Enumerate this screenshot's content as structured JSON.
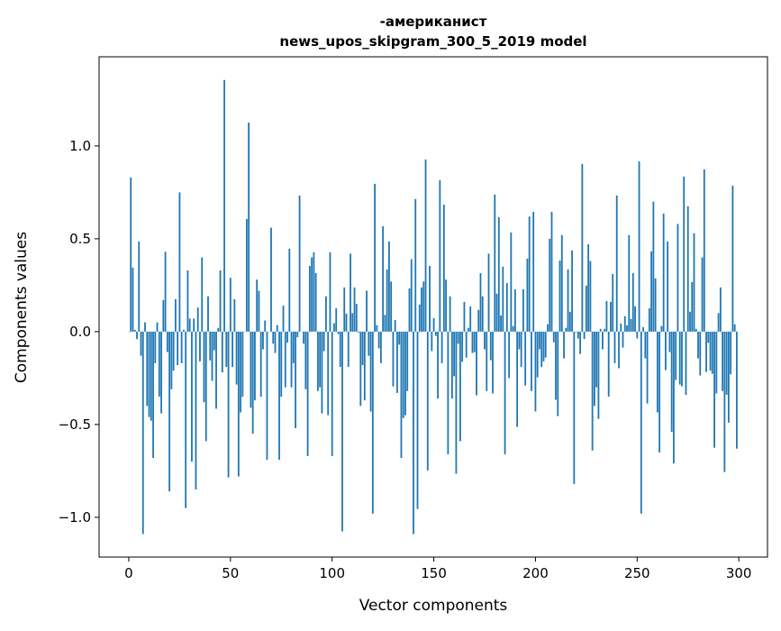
{
  "chart_data": {
    "type": "bar",
    "title": [
      "-американист",
      "news_upos_skipgram_300_5_2019 model"
    ],
    "xlabel": "Vector components",
    "ylabel": "Components values",
    "xlim": [
      -14.6,
      314.1
    ],
    "ylim": [
      -1.214,
      1.48
    ],
    "xticks": [
      0,
      50,
      100,
      150,
      200,
      250,
      300
    ],
    "xtick_labels": [
      "0",
      "50",
      "100",
      "150",
      "200",
      "250",
      "300"
    ],
    "yticks": [
      -1.0,
      -0.5,
      0.0,
      0.5,
      1.0
    ],
    "ytick_labels": [
      "−1.0",
      "−0.5",
      "0.0",
      "0.5",
      "1.0"
    ],
    "grid": false,
    "bar_color": "#1f77b4",
    "values": [
      0.0,
      0.83,
      0.345,
      0.01,
      -0.04,
      0.485,
      -0.13,
      -1.09,
      0.05,
      -0.4,
      -0.46,
      -0.48,
      -0.68,
      -0.17,
      0.05,
      -0.35,
      -0.44,
      0.17,
      0.43,
      -0.11,
      -0.86,
      -0.31,
      -0.21,
      0.175,
      -0.18,
      0.75,
      -0.17,
      0.01,
      -0.95,
      0.33,
      0.07,
      -0.7,
      0.07,
      -0.85,
      0.13,
      -0.16,
      0.4,
      -0.38,
      -0.59,
      0.19,
      -0.155,
      -0.265,
      -0.1,
      -0.415,
      0.02,
      0.33,
      -0.22,
      1.355,
      -0.19,
      -0.785,
      0.29,
      -0.19,
      0.175,
      -0.285,
      -0.78,
      -0.435,
      -0.35,
      0.0,
      0.607,
      1.126,
      -0.41,
      -0.55,
      -0.37,
      0.28,
      0.22,
      -0.35,
      -0.095,
      0.06,
      -0.69,
      0.0,
      0.56,
      -0.065,
      -0.115,
      0.035,
      -0.69,
      -0.35,
      0.14,
      -0.3,
      -0.06,
      0.447,
      -0.3,
      -0.17,
      -0.52,
      -0.03,
      0.733,
      0.0,
      -0.065,
      -0.31,
      -0.67,
      0.354,
      0.4,
      0.427,
      0.315,
      -0.32,
      -0.3,
      -0.44,
      -0.105,
      0.19,
      -0.45,
      0.427,
      -0.67,
      0.045,
      0.126,
      -0.013,
      -0.19,
      -1.076,
      0.238,
      0.097,
      -0.19,
      0.42,
      0.1,
      0.238,
      0.15,
      -0.005,
      -0.4,
      -0.18,
      -0.37,
      0.22,
      -0.13,
      -0.43,
      -0.98,
      0.796,
      0.035,
      -0.09,
      -0.17,
      0.568,
      0.09,
      0.335,
      0.485,
      0.27,
      -0.295,
      0.063,
      -0.33,
      -0.07,
      -0.68,
      -0.465,
      -0.45,
      -0.32,
      0.233,
      0.39,
      -1.09,
      0.714,
      -0.955,
      0.146,
      0.238,
      0.27,
      0.927,
      -0.747,
      0.354,
      -0.105,
      0.073,
      -0.023,
      -0.36,
      0.815,
      -0.17,
      0.684,
      0.28,
      -0.66,
      0.19,
      -0.36,
      -0.24,
      -0.765,
      -0.066,
      -0.59,
      -0.163,
      0.16,
      -0.14,
      0.02,
      0.136,
      -0.115,
      -0.11,
      -0.343,
      0.117,
      0.315,
      0.19,
      -0.095,
      -0.32,
      0.42,
      -0.154,
      -0.333,
      0.738,
      0.204,
      0.617,
      0.087,
      0.35,
      -0.66,
      0.262,
      -0.25,
      0.534,
      0.03,
      0.228,
      -0.513,
      -0.095,
      -0.19,
      0.228,
      -0.29,
      0.393,
      0.62,
      -0.32,
      0.645,
      -0.43,
      -0.246,
      -0.095,
      -0.19,
      -0.16,
      -0.14,
      0.04,
      0.5,
      0.645,
      -0.057,
      -0.367,
      -0.455,
      0.383,
      0.52,
      -0.144,
      0.02,
      0.335,
      0.107,
      0.437,
      -0.82,
      -0.003,
      -0.037,
      -0.12,
      0.903,
      -0.04,
      0.248,
      0.47,
      0.38,
      -0.64,
      -0.4,
      -0.3,
      -0.47,
      0.015,
      -0.095,
      0.015,
      0.165,
      -0.35,
      0.16,
      0.31,
      -0.17,
      0.733,
      -0.197,
      0.044,
      -0.086,
      0.083,
      0.034,
      0.52,
      0.068,
      0.315,
      0.136,
      -0.037,
      0.917,
      -0.98,
      0.024,
      -0.144,
      -0.387,
      0.126,
      0.432,
      0.7,
      0.286,
      -0.435,
      -0.65,
      0.03,
      0.636,
      -0.207,
      0.485,
      -0.11,
      -0.54,
      -0.71,
      -0.26,
      0.58,
      -0.285,
      -0.295,
      0.835,
      -0.34,
      0.675,
      0.107,
      0.267,
      0.53,
      0.015,
      -0.144,
      -0.236,
      0.4,
      0.874,
      -0.217,
      -0.06,
      -0.21,
      -0.227,
      -0.625,
      -0.333,
      0.1,
      0.238,
      -0.32,
      -0.756,
      -0.34,
      -0.49,
      -0.23,
      0.786,
      0.04,
      -0.63
    ]
  }
}
